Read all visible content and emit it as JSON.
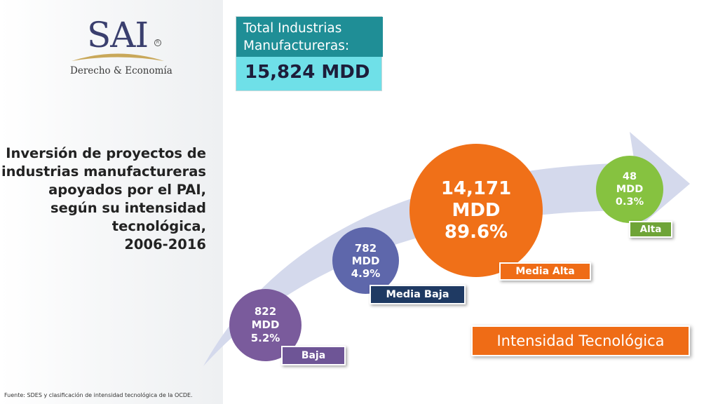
{
  "logo": {
    "brand": "SAI",
    "registered": "R",
    "subtitle": "Derecho & Economía"
  },
  "title": {
    "lines": [
      "Inversión de proyectos de",
      "industrias manufactureras",
      "apoyados por el PAI,",
      "según su intensidad",
      "tecnológica,",
      "2006-2016"
    ]
  },
  "total": {
    "label_line1": "Total Industrias",
    "label_line2": "Manufactureras:",
    "value": "15,824 MDD"
  },
  "categories": [
    {
      "name": "Baja",
      "amount": "822",
      "unit": "MDD",
      "share": "5.2%",
      "color": "#7a5b9c"
    },
    {
      "name": "Media Baja",
      "amount": "782",
      "unit": "MDD",
      "share": "4.9%",
      "color": "#5e67ab"
    },
    {
      "name": "Media Alta",
      "amount": "14,171",
      "unit": "MDD",
      "share": "89.6%",
      "color": "#f07018"
    },
    {
      "name": "Alta",
      "amount": "48",
      "unit": "MDD",
      "share": "0.3%",
      "color": "#86c240"
    }
  ],
  "axis_label": "Intensidad Tecnológica",
  "source": "Fuente: SDES y clasificación de intensidad tecnológica de la OCDE.",
  "colors": {
    "total_header": "#1f8e96",
    "total_value_bg": "#6fe0e8",
    "arrow": "#d4d9ec",
    "accent": "#ef6c16"
  }
}
